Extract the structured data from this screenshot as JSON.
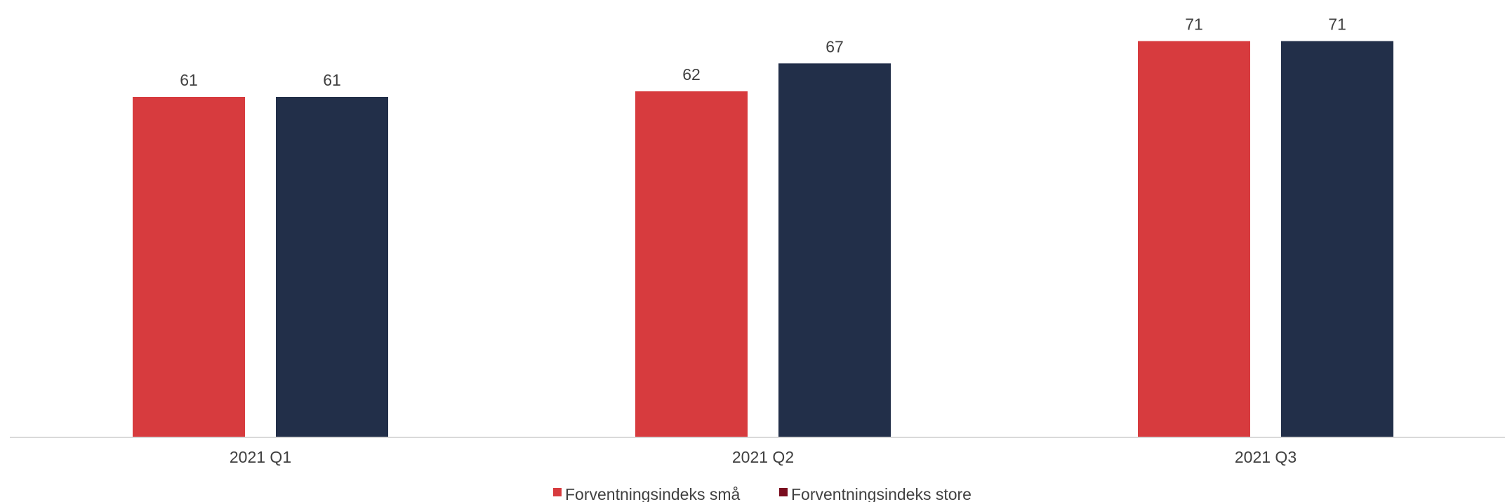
{
  "chart_data": {
    "type": "bar",
    "categories": [
      "2021 Q1",
      "2021 Q2",
      "2021 Q3"
    ],
    "series": [
      {
        "name": "Forventningsindeks små",
        "values": [
          61,
          62,
          71
        ],
        "color": "#d73b3e"
      },
      {
        "name": "Forventningsindeks store",
        "values": [
          61,
          67,
          71
        ],
        "color": "#222f49"
      }
    ],
    "legend_marker_colors": [
      "#d73b3e",
      "#7a0c1e"
    ],
    "ylim": [
      0,
      72.7
    ],
    "grid": false,
    "legend_position": "bottom-center",
    "axis_color": "#d9d9d9",
    "label_color": "#404040"
  }
}
